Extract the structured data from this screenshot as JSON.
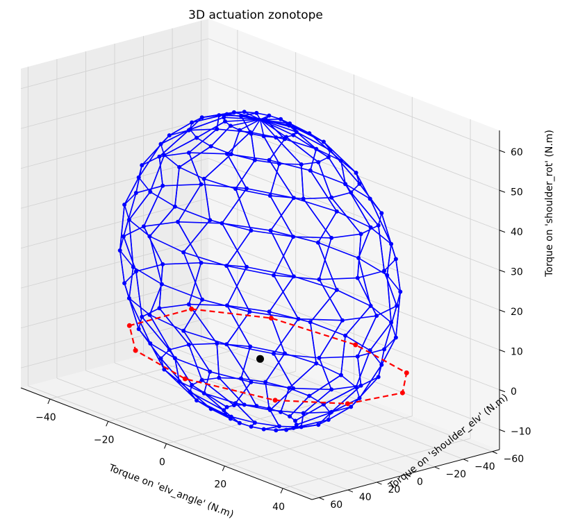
{
  "chart_data": {
    "type": "3d-wireframe",
    "title": "3D actuation zonotope",
    "xlabel": "Torque on 'elv_angle' (N.m)",
    "ylabel": "Torque on 'shoulder_elv' (N.m)",
    "zlabel": "Torque on 'shoulder_rot' (N.m)",
    "xlim": [
      -50,
      50
    ],
    "ylim": [
      -65,
      65
    ],
    "zlim": [
      -15,
      65
    ],
    "x_ticks": [
      -40,
      -20,
      0,
      20,
      40
    ],
    "y_ticks": [
      -60,
      -40,
      -20,
      0,
      20,
      40,
      60
    ],
    "z_ticks": [
      -10,
      0,
      10,
      20,
      30,
      40,
      50,
      60
    ],
    "x_tick_labels": [
      "−40",
      "−20",
      "0",
      "20",
      "40"
    ],
    "y_tick_labels": [
      "−60",
      "−40",
      "−20",
      "0",
      "20",
      "40",
      "60"
    ],
    "z_tick_labels": [
      "−10",
      "0",
      "10",
      "20",
      "30",
      "40",
      "50",
      "60"
    ],
    "grid": true,
    "zonotope": {
      "color": "#0000ff",
      "center": [
        0,
        0,
        22
      ],
      "radii": [
        40,
        55,
        38
      ]
    },
    "slice": {
      "color": "#ff0000",
      "style": "dashed",
      "z": 0,
      "points": [
        [
          -36,
          -25
        ],
        [
          -20,
          -48
        ],
        [
          6,
          -54
        ],
        [
          28,
          -45
        ],
        [
          38,
          -22
        ],
        [
          36,
          12
        ],
        [
          24,
          38
        ],
        [
          0,
          52
        ],
        [
          -22,
          42
        ],
        [
          -36,
          18
        ]
      ]
    },
    "center_point": {
      "color": "#000000",
      "xyz": [
        0,
        0,
        0
      ]
    }
  }
}
